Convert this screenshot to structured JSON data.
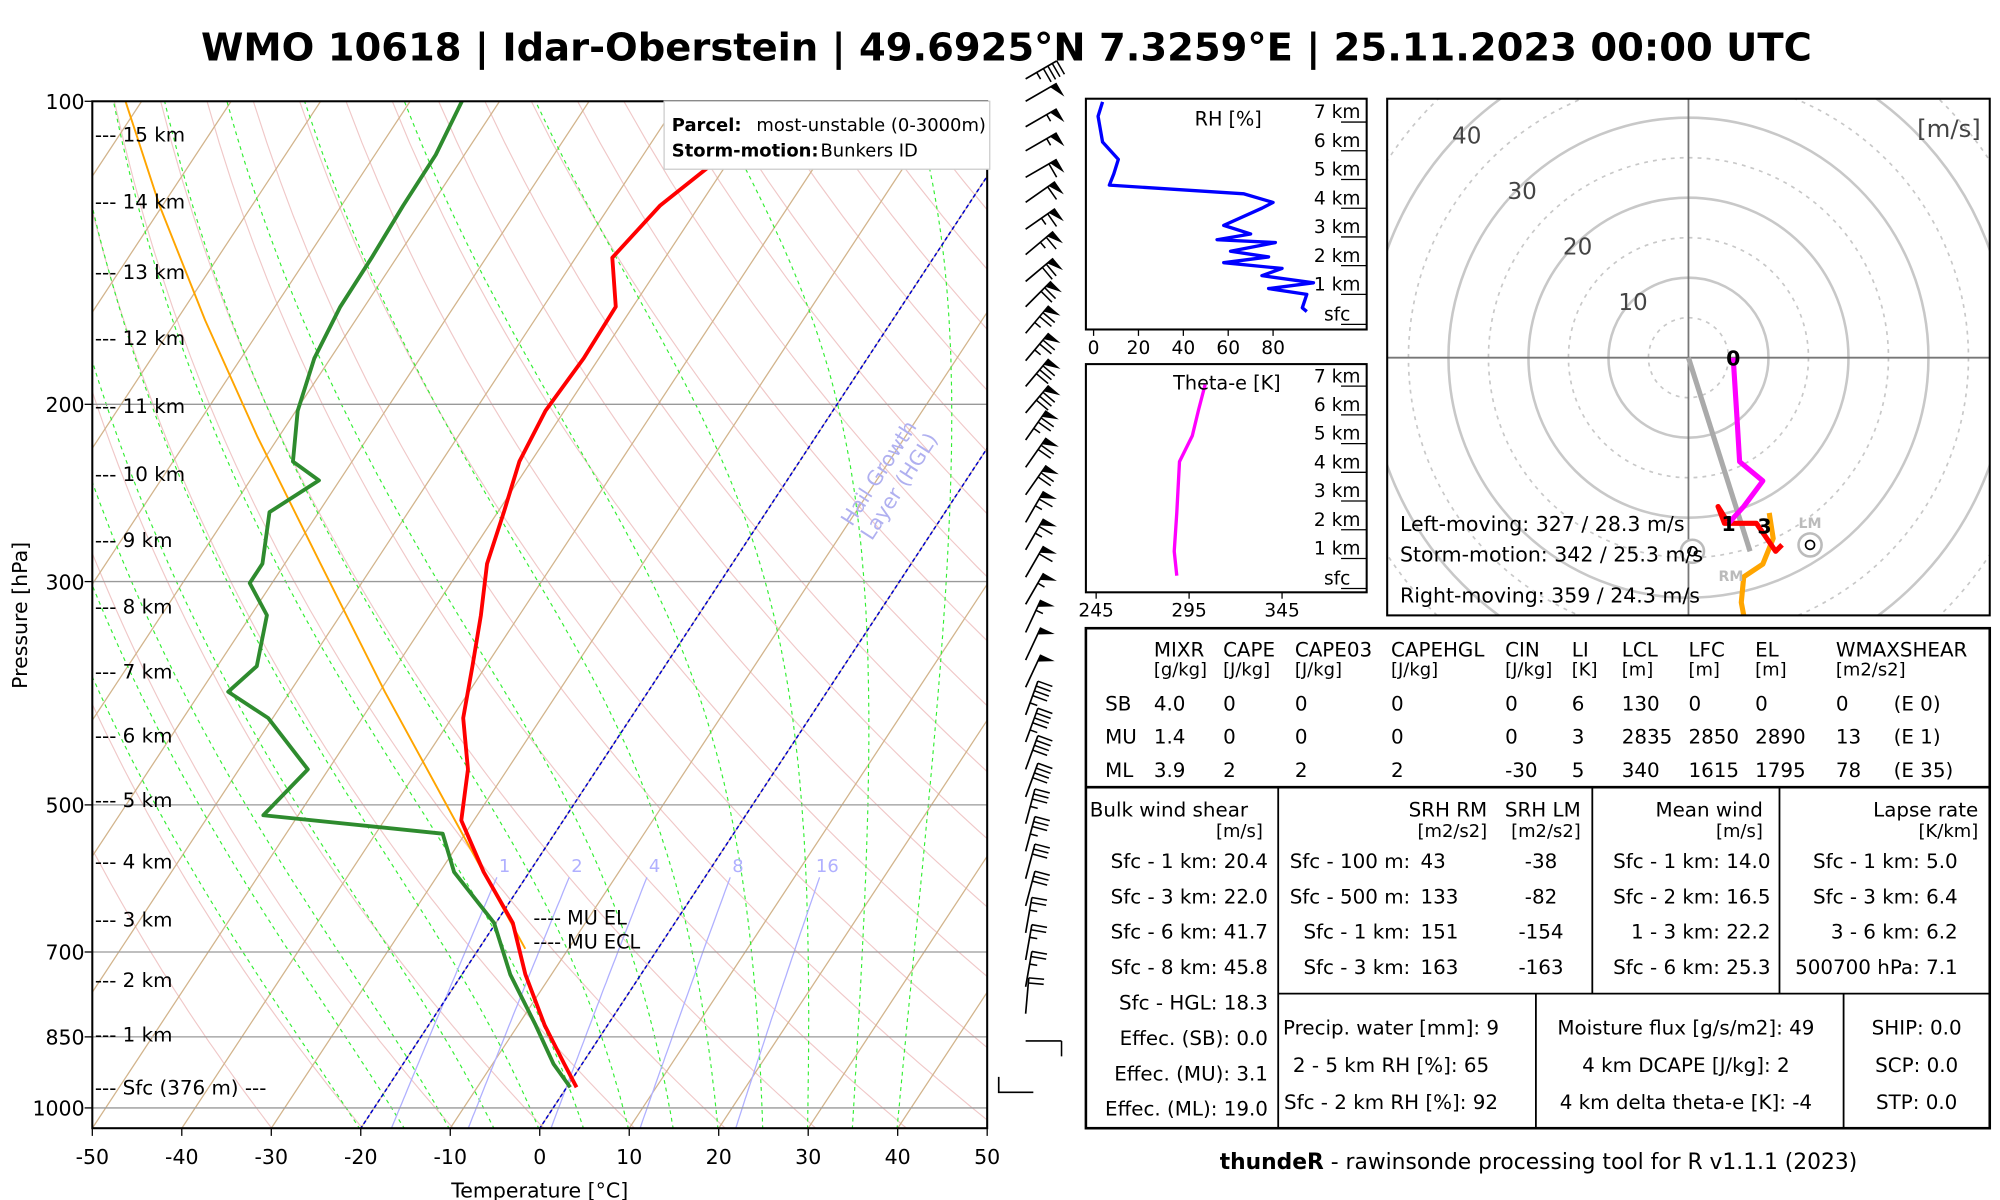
{
  "title": "WMO 10618 | Idar-Oberstein | 49.6925°N 7.3259°E | 25.11.2023 00:00 UTC",
  "footer": {
    "brand": "thundeR",
    "text": " - rawinsonde processing tool for R v1.1.1 (2023)"
  },
  "legend": {
    "parcel_label": "Parcel:",
    "parcel_value": "most-unstable (0-3000m)",
    "storm_label": "Storm-motion:",
    "storm_value": "Bunkers ID"
  },
  "colors": {
    "temperature": "#ff0000",
    "dewpoint": "#2e8b2e",
    "parcel": "#ffa500",
    "rh": "#0000ff",
    "thetae": "#ff00ff",
    "hgl": "#0000cc"
  },
  "chart_data": [
    {
      "type": "line",
      "name": "skew-t",
      "xlabel": "Temperature [°C]",
      "ylabel": "Pressure [hPa]",
      "xlim": [
        -50,
        50
      ],
      "ylim": [
        1048,
        100
      ],
      "xticks": [
        "-50",
        "-40",
        "-30",
        "-20",
        "-10",
        "0",
        "10",
        "20",
        "30",
        "40",
        "50"
      ],
      "yticks": [
        "100",
        "200",
        "300",
        "500",
        "700",
        "850",
        "1000"
      ],
      "height_labels": [
        {
          "label": "--- 15 km",
          "p": 108
        },
        {
          "label": "--- 14 km",
          "p": 126
        },
        {
          "label": "--- 13 km",
          "p": 148
        },
        {
          "label": "--- 12 km",
          "p": 172
        },
        {
          "label": "--- 11 km",
          "p": 201
        },
        {
          "label": "--- 10 km",
          "p": 235
        },
        {
          "label": "--- 9 km",
          "p": 273
        },
        {
          "label": "--- 8 km",
          "p": 318
        },
        {
          "label": "--- 7 km",
          "p": 369
        },
        {
          "label": "--- 6 km",
          "p": 427
        },
        {
          "label": "--- 5 km",
          "p": 495
        },
        {
          "label": "--- 4 km",
          "p": 570
        },
        {
          "label": "--- 3 km",
          "p": 651
        },
        {
          "label": "--- 2 km",
          "p": 747
        },
        {
          "label": "--- 1 km",
          "p": 847
        },
        {
          "label": "--- Sfc (376 m) ---",
          "p": 956
        }
      ],
      "series": [
        {
          "name": "temperature",
          "p": [
            954,
            904,
            828,
            737,
            655,
            583,
            518,
            461,
            410,
            364,
            324,
            288,
            256,
            228,
            203,
            180,
            160,
            143,
            127,
            113,
            100
          ],
          "T": [
            1.1,
            -2.0,
            -7.0,
            -12.9,
            -18.1,
            -25.1,
            -31.4,
            -34.4,
            -38.7,
            -41.5,
            -44.3,
            -47.4,
            -49.3,
            -51.3,
            -52.1,
            -51.7,
            -51.9,
            -55.9,
            -54.4,
            -51.0,
            -51.3
          ]
        },
        {
          "name": "dewpoint",
          "p": [
            954,
            904,
            828,
            737,
            655,
            583,
            534,
            512,
            461,
            410,
            386,
            364,
            324,
            301,
            288,
            256,
            238,
            228,
            203,
            180,
            160,
            143,
            127,
            113,
            100
          ],
          "T": [
            0.4,
            -3.2,
            -8.0,
            -14.6,
            -20.2,
            -28.4,
            -32.5,
            -53.9,
            -52.3,
            -60.5,
            -66.9,
            -65.6,
            -68.2,
            -72.5,
            -72.5,
            -75.5,
            -72.3,
            -76.6,
            -79.8,
            -81.8,
            -82.7,
            -82.8,
            -83.1,
            -83.2,
            -84.2
          ]
        },
        {
          "name": "parcel",
          "p": [
            695,
            518,
            386,
            288,
            215,
            165,
            127,
            100
          ],
          "T": [
            -14.8,
            -32.1,
            -49.4,
            -66.0,
            -82.5,
            -96.8,
            -110.3,
            -121.8
          ]
        }
      ],
      "mixing_ratio_lines": [
        "1",
        "2",
        "4",
        "8",
        "16"
      ],
      "hgl_isotherms": [
        0,
        -20
      ],
      "annotations": {
        "hgl_1": "Hail Growth",
        "hgl_2": "Layer (HGL)",
        "mu_el": "---- MU EL",
        "mu_ecl": "---- MU ECL"
      },
      "wind_barbs": {
        "p": [
          95,
          100,
          106,
          112,
          119,
          126,
          134,
          142,
          151,
          160,
          170,
          181,
          192,
          204,
          217,
          231,
          246,
          262,
          279,
          297,
          316,
          337,
          359,
          382,
          407,
          433,
          461,
          491,
          522,
          556,
          592,
          630,
          670,
          713,
          758,
          806,
          858
        ],
        "dir": [
          300,
          300,
          300,
          300,
          300,
          305,
          305,
          310,
          310,
          315,
          320,
          320,
          320,
          320,
          325,
          325,
          325,
          330,
          330,
          330,
          330,
          335,
          335,
          335,
          340,
          340,
          340,
          340,
          345,
          345,
          345,
          345,
          350,
          350,
          350,
          355,
          270
        ],
        "speed_kt": [
          45,
          50,
          55,
          55,
          60,
          60,
          65,
          65,
          70,
          70,
          75,
          75,
          80,
          80,
          75,
          70,
          70,
          65,
          65,
          60,
          55,
          55,
          50,
          50,
          45,
          45,
          40,
          40,
          35,
          35,
          30,
          30,
          25,
          25,
          25,
          20,
          10
        ]
      }
    },
    {
      "type": "line",
      "name": "rh-profile",
      "title": "RH [%]",
      "xticks": [
        "0",
        "20",
        "40",
        "60",
        "80"
      ],
      "height_labels": [
        "7 km",
        "6 km",
        "5 km",
        "4 km",
        "3 km",
        "2 km",
        "1 km",
        "sfc"
      ],
      "height_km": [
        7.3,
        6.8,
        5.9,
        5.3,
        4.8,
        4.4,
        4.1,
        3.8,
        3.6,
        3.0,
        2.7,
        2.5,
        2.4,
        2.1,
        1.9,
        1.7,
        1.5,
        1.25,
        1.0,
        0.8,
        0.6,
        0.13,
        0
      ],
      "rh": [
        4,
        2,
        4,
        11,
        9,
        7,
        67,
        80,
        75,
        58,
        70,
        55,
        81,
        61,
        78,
        58,
        84,
        75,
        98,
        78,
        95,
        93,
        95
      ]
    },
    {
      "type": "line",
      "name": "thetae-profile",
      "title": "Theta-e [K]",
      "xticks": [
        "245",
        "295",
        "345"
      ],
      "height_labels": [
        "7 km",
        "6 km",
        "5 km",
        "4 km",
        "3 km",
        "2 km",
        "1 km",
        "sfc"
      ],
      "height_km": [
        6.65,
        5.76,
        4.87,
        3.97,
        2.19,
        0.85,
        0
      ],
      "thetae": [
        303.6,
        300.0,
        296.7,
        289.8,
        288.4,
        287.0,
        288.4
      ]
    },
    {
      "type": "line",
      "name": "hodograph",
      "unit": "[m/s]",
      "ring_labels": [
        "10",
        "20",
        "30",
        "40"
      ],
      "segments": [
        {
          "name": "0-1 km",
          "color": "#ff00ff",
          "u": [
            5.6,
            6.1,
            6.4,
            9.3,
            6.9,
            5.0
          ],
          "v": [
            0,
            -8.2,
            -13,
            -15.4,
            -18.6,
            -20.7
          ]
        },
        {
          "name": "1-3 km",
          "color": "#ff0000",
          "u": [
            5.0,
            3.7,
            4.5,
            8.5,
            10.9,
            11.7
          ],
          "v": [
            -20.7,
            -18.6,
            -20.7,
            -20.7,
            -24.2,
            -23.4
          ]
        },
        {
          "name": "3+ km",
          "color": "#ffa500",
          "u": [
            10.1,
            10.6,
            9.3,
            6.9,
            6.6,
            6.9
          ],
          "v": [
            -19.4,
            -22.6,
            -25.8,
            -27.4,
            -30.6,
            -32.2
          ]
        }
      ],
      "height_markers": [
        {
          "label": "0",
          "u": 5.6,
          "v": 0
        },
        {
          "label": "1",
          "u": 5.0,
          "v": -20.7
        },
        {
          "label": "3",
          "u": 9.5,
          "v": -21
        }
      ],
      "storm_motion": {
        "u": 7.7,
        "v": -24.2
      },
      "rm": {
        "label": "RM",
        "u": 0.5,
        "v": -24.2
      },
      "lm": {
        "label": "LM",
        "u": 15.2,
        "v": -23.4
      },
      "texts": [
        "Left-moving: 327 / 28.3 m/s",
        "Storm-motion: 342 / 25.3 m/s",
        "Right-moving: 359 / 24.3 m/s"
      ]
    }
  ],
  "params_table": {
    "thermo": {
      "headers": [
        [
          "MIXR",
          "[g/kg]"
        ],
        [
          "CAPE",
          "[J/kg]"
        ],
        [
          "CAPE03",
          "[J/kg]"
        ],
        [
          "CAPEHGL",
          "[J/kg]"
        ],
        [
          "CIN",
          "[J/kg]"
        ],
        [
          "LI",
          "[K]"
        ],
        [
          "LCL",
          "[m]"
        ],
        [
          "LFC",
          "[m]"
        ],
        [
          "EL",
          "[m]"
        ],
        [
          "WMAXSHEAR",
          "[m2/s2]"
        ]
      ],
      "rows": [
        [
          "SB",
          "4.0",
          "0",
          "0",
          "0",
          "0",
          "6",
          "130",
          "0",
          "0",
          "0",
          "(E 0)"
        ],
        [
          "MU",
          "1.4",
          "0",
          "0",
          "0",
          "0",
          "3",
          "2835",
          "2850",
          "2890",
          "13",
          "(E 1)"
        ],
        [
          "ML",
          "3.9",
          "2",
          "2",
          "2",
          "-30",
          "5",
          "340",
          "1615",
          "1795",
          "78",
          "(E 35)"
        ]
      ]
    },
    "bulk_shear": {
      "title": "Bulk wind shear",
      "unit": "[m/s]",
      "rows": [
        "Sfc - 1 km: 20.4",
        "Sfc - 3 km: 22.0",
        "Sfc - 6 km: 41.7",
        "Sfc - 8 km: 45.8",
        "Sfc - HGL: 18.3",
        "Effec. (SB): 0.0",
        "Effec. (MU): 3.1",
        "Effec. (ML): 19.0"
      ]
    },
    "srh": {
      "title_rm": "SRH RM",
      "title_lm": "SRH LM",
      "unit_rm": "[m2/s2]",
      "unit_lm": "[m2/s2]",
      "rows": [
        [
          "Sfc - 100 m:",
          "43",
          "-38"
        ],
        [
          "Sfc - 500 m:",
          "133",
          "-82"
        ],
        [
          "Sfc - 1 km:",
          "151",
          "-154"
        ],
        [
          "Sfc - 3 km:",
          "163",
          "-163"
        ]
      ]
    },
    "mean_wind": {
      "title": "Mean wind",
      "unit": "[m/s]",
      "rows": [
        "Sfc - 1 km: 14.0",
        "Sfc - 2 km: 16.5",
        "1 - 3 km: 22.2",
        "Sfc - 6 km: 25.3"
      ]
    },
    "lapse_rate": {
      "title": "Lapse rate",
      "unit": "[K/km]",
      "rows": [
        "Sfc - 1 km: 5.0",
        "Sfc - 3 km: 6.4",
        "3 - 6 km: 6.2",
        "500700 hPa: 7.1"
      ]
    },
    "moisture": [
      "Precip. water [mm]: 9",
      "2 - 5 km RH [%]: 65",
      "Sfc - 2 km RH [%]: 92"
    ],
    "flux": [
      "Moisture flux [g/s/m2]: 49",
      "4 km DCAPE [J/kg]: 2",
      "4 km delta theta-e [K]: -4"
    ],
    "composite": [
      "SHIP: 0.0",
      "SCP: 0.0",
      "STP: 0.0"
    ]
  }
}
